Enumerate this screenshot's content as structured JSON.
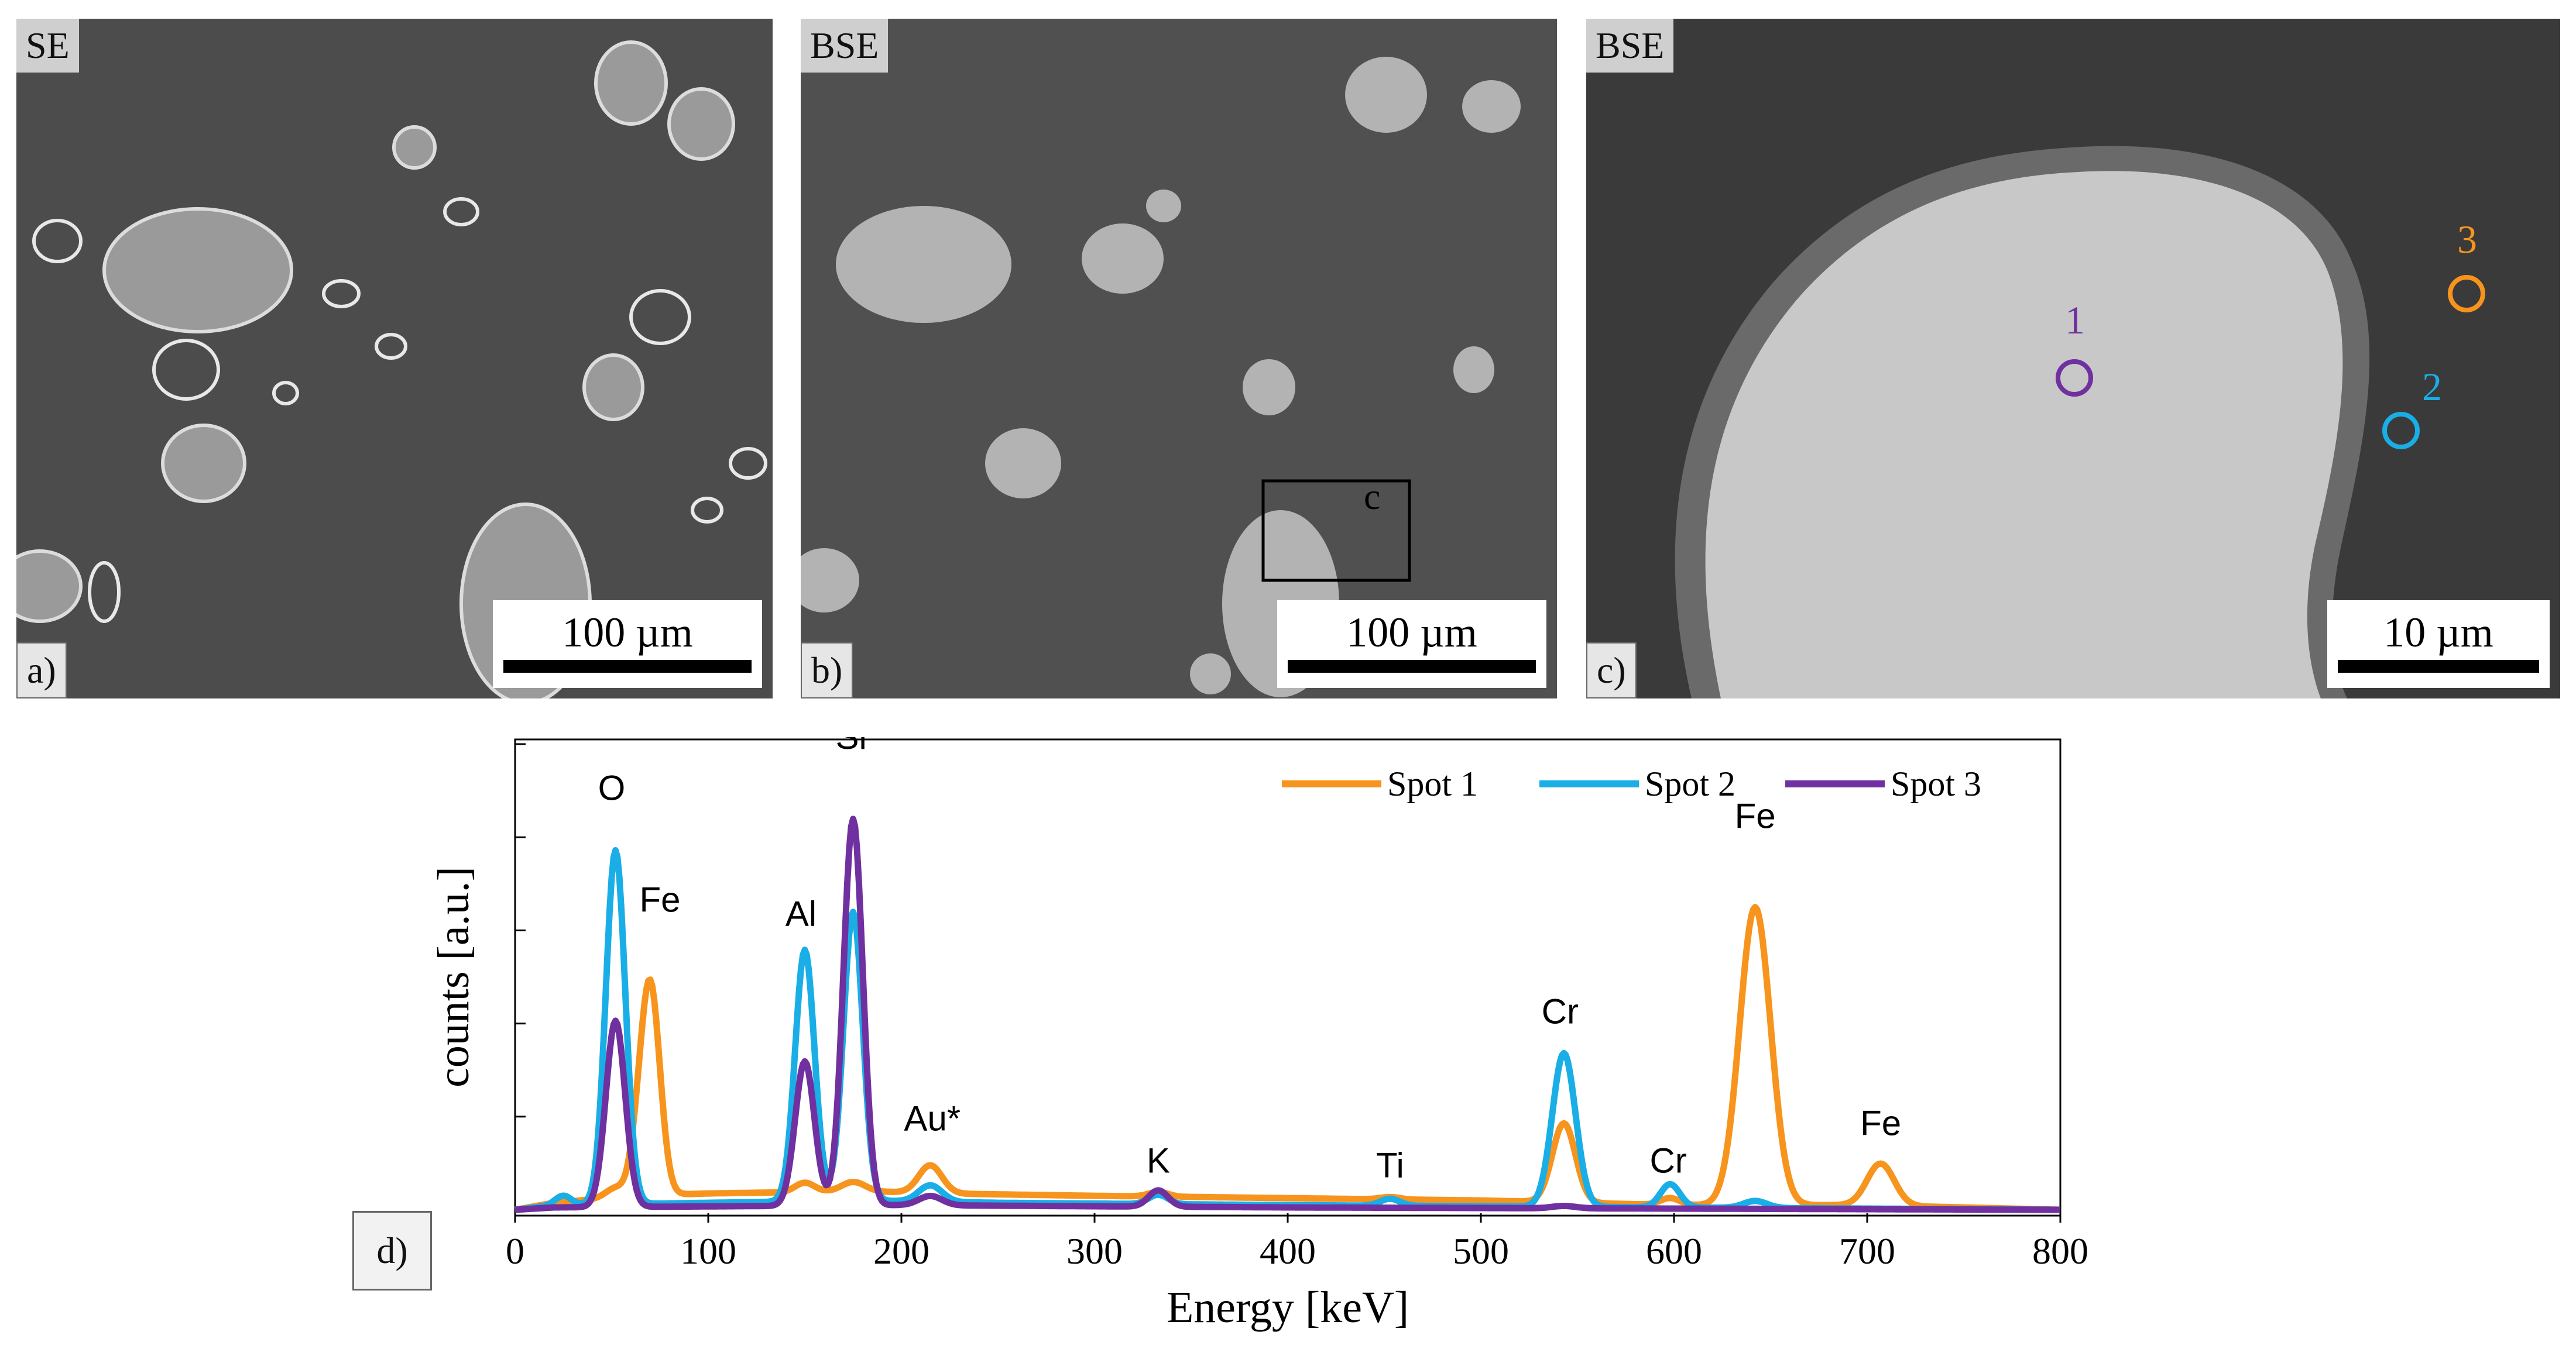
{
  "panels": [
    {
      "id": "a",
      "mode_label": "SE",
      "letter": "a)",
      "scale_label": "100 µm"
    },
    {
      "id": "b",
      "mode_label": "BSE",
      "letter": "b)",
      "scale_label": "100 µm",
      "inset_label": "c"
    },
    {
      "id": "c",
      "mode_label": "BSE",
      "letter": "c)",
      "scale_label": "10 µm",
      "spots": [
        {
          "label": "1",
          "color": "#7030a0"
        },
        {
          "label": "2",
          "color": "#1aaee6"
        },
        {
          "label": "3",
          "color": "#f7941d"
        }
      ]
    }
  ],
  "chart_panel_letter": "d)",
  "chart_data": {
    "type": "line",
    "xlabel": "Energy [keV]",
    "ylabel": "counts [a.u.]",
    "xlim": [
      0,
      800
    ],
    "ylim": [
      0,
      1.0
    ],
    "xticks": [
      "0",
      "100",
      "200",
      "300",
      "400",
      "500",
      "600",
      "700",
      "800"
    ],
    "legend_position": "top-right",
    "series": [
      {
        "name": "Spot 1",
        "color": "#f7941d",
        "baseline": [
          [
            0,
            0.0
          ],
          [
            20,
            0.015
          ],
          [
            60,
            0.03
          ],
          [
            100,
            0.035
          ],
          [
            180,
            0.04
          ],
          [
            220,
            0.035
          ],
          [
            300,
            0.03
          ],
          [
            400,
            0.025
          ],
          [
            500,
            0.02
          ],
          [
            600,
            0.01
          ],
          [
            700,
            0.01
          ],
          [
            800,
            0.0
          ]
        ],
        "peaks": [
          [
            52,
            0.02,
            5
          ],
          [
            63,
            0.06,
            4
          ],
          [
            70,
            0.45,
            5
          ],
          [
            150,
            0.02,
            5
          ],
          [
            175,
            0.02,
            6
          ],
          [
            215,
            0.06,
            6
          ],
          [
            333,
            0.01,
            5
          ],
          [
            453,
            0.005,
            5
          ],
          [
            543,
            0.17,
            6
          ],
          [
            598,
            0.015,
            5
          ],
          [
            642,
            0.64,
            8
          ],
          [
            707,
            0.09,
            7
          ]
        ]
      },
      {
        "name": "Spot 2",
        "color": "#1aaee6",
        "baseline": [
          [
            0,
            0.0
          ],
          [
            20,
            0.01
          ],
          [
            100,
            0.015
          ],
          [
            180,
            0.02
          ],
          [
            250,
            0.015
          ],
          [
            400,
            0.01
          ],
          [
            600,
            0.005
          ],
          [
            800,
            0.0
          ]
        ],
        "peaks": [
          [
            25,
            0.02,
            4
          ],
          [
            52,
            0.76,
            5
          ],
          [
            150,
            0.54,
            5
          ],
          [
            175,
            0.62,
            5
          ],
          [
            215,
            0.035,
            6
          ],
          [
            333,
            0.02,
            5
          ],
          [
            453,
            0.015,
            5
          ],
          [
            543,
            0.33,
            6
          ],
          [
            598,
            0.05,
            5
          ],
          [
            642,
            0.015,
            6
          ]
        ]
      },
      {
        "name": "Spot 3",
        "color": "#7030a0",
        "baseline": [
          [
            0,
            0.0
          ],
          [
            20,
            0.005
          ],
          [
            200,
            0.01
          ],
          [
            400,
            0.005
          ],
          [
            800,
            0.0
          ]
        ],
        "peaks": [
          [
            52,
            0.4,
            5
          ],
          [
            150,
            0.31,
            5
          ],
          [
            175,
            0.83,
            5
          ],
          [
            215,
            0.02,
            6
          ],
          [
            333,
            0.035,
            5
          ],
          [
            543,
            0.005,
            6
          ]
        ]
      }
    ],
    "annotations": [
      {
        "text": "O",
        "x": 50,
        "y": 0.88
      },
      {
        "text": "Fe",
        "x": 75,
        "y": 0.64
      },
      {
        "text": "Al",
        "x": 148,
        "y": 0.61
      },
      {
        "text": "Si",
        "x": 174,
        "y": 0.99
      },
      {
        "text": "Au*",
        "x": 216,
        "y": 0.17
      },
      {
        "text": "K",
        "x": 333,
        "y": 0.08
      },
      {
        "text": "Ti",
        "x": 453,
        "y": 0.07
      },
      {
        "text": "Cr",
        "x": 541,
        "y": 0.4
      },
      {
        "text": "Cr",
        "x": 597,
        "y": 0.08
      },
      {
        "text": "Fe",
        "x": 642,
        "y": 0.82
      },
      {
        "text": "Fe",
        "x": 707,
        "y": 0.16
      }
    ]
  }
}
